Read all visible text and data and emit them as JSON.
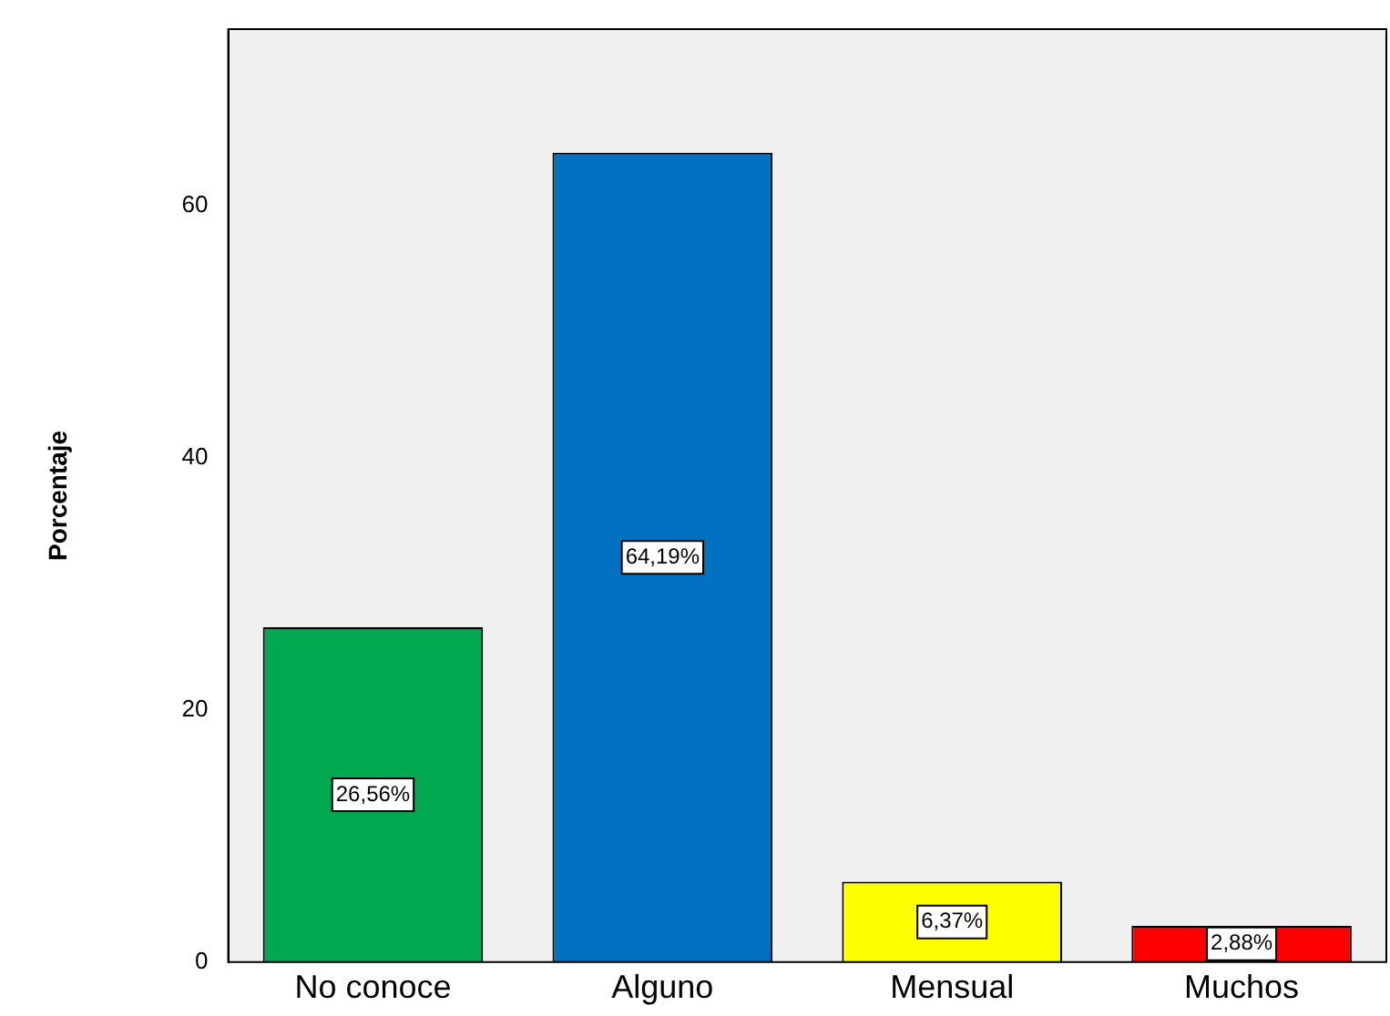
{
  "chart_data": {
    "type": "bar",
    "ylabel": "Porcentaje",
    "categories": [
      "No conoce",
      "Alguno",
      "Mensual",
      "Muchos"
    ],
    "values": [
      26.56,
      64.19,
      6.37,
      2.88
    ],
    "colors": [
      "#00a84f",
      "#0070c0",
      "#ffff00",
      "#ff0000"
    ],
    "value_labels": [
      "26,56%",
      "64,19%",
      "6,37%",
      "2,88%"
    ],
    "ylim": [
      0,
      74
    ],
    "yticks": [
      0,
      20,
      40,
      60
    ],
    "grid": false,
    "legend": false
  }
}
